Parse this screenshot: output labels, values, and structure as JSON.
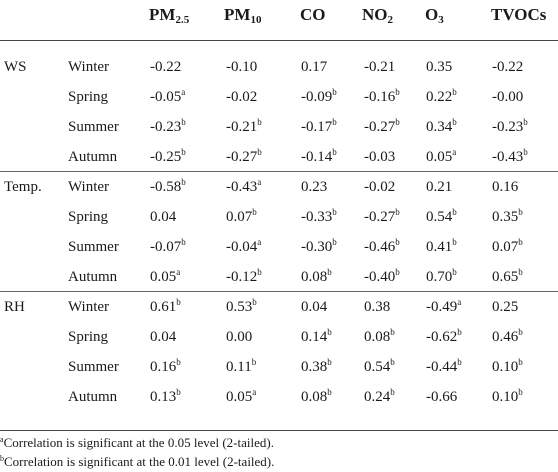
{
  "header": {
    "columns": [
      {
        "base": "PM",
        "sub": "2.5"
      },
      {
        "base": "PM",
        "sub": "10"
      },
      {
        "base": "CO",
        "sub": ""
      },
      {
        "base": "NO",
        "sub": "2"
      },
      {
        "base": "O",
        "sub": "3"
      },
      {
        "base": "TVOCs",
        "sub": ""
      }
    ]
  },
  "groups": [
    {
      "label": "WS",
      "rows": [
        {
          "season": "Winter",
          "cells": [
            {
              "v": "-0.22",
              "m": ""
            },
            {
              "v": "-0.10",
              "m": ""
            },
            {
              "v": "0.17",
              "m": ""
            },
            {
              "v": "-0.21",
              "m": ""
            },
            {
              "v": "0.35",
              "m": ""
            },
            {
              "v": "-0.22",
              "m": ""
            }
          ]
        },
        {
          "season": "Spring",
          "cells": [
            {
              "v": "-0.05",
              "m": "a"
            },
            {
              "v": "-0.02",
              "m": ""
            },
            {
              "v": "-0.09",
              "m": "b"
            },
            {
              "v": "-0.16",
              "m": "b"
            },
            {
              "v": "0.22",
              "m": "b"
            },
            {
              "v": "-0.00",
              "m": ""
            }
          ]
        },
        {
          "season": "Summer",
          "cells": [
            {
              "v": "-0.23",
              "m": "b"
            },
            {
              "v": "-0.21",
              "m": "b"
            },
            {
              "v": "-0.17",
              "m": "b"
            },
            {
              "v": "-0.27",
              "m": "b"
            },
            {
              "v": "0.34",
              "m": "b"
            },
            {
              "v": "-0.23",
              "m": "b"
            }
          ]
        },
        {
          "season": "Autumn",
          "cells": [
            {
              "v": "-0.25",
              "m": "b"
            },
            {
              "v": "-0.27",
              "m": "b"
            },
            {
              "v": "-0.14",
              "m": "b"
            },
            {
              "v": "-0.03",
              "m": ""
            },
            {
              "v": "0.05",
              "m": "a"
            },
            {
              "v": "-0.43",
              "m": "b"
            }
          ]
        }
      ]
    },
    {
      "label": "Temp.",
      "rows": [
        {
          "season": "Winter",
          "cells": [
            {
              "v": "-0.58",
              "m": "b"
            },
            {
              "v": "-0.43",
              "m": "a"
            },
            {
              "v": "0.23",
              "m": ""
            },
            {
              "v": "-0.02",
              "m": ""
            },
            {
              "v": "0.21",
              "m": ""
            },
            {
              "v": "0.16",
              "m": ""
            }
          ]
        },
        {
          "season": "Spring",
          "cells": [
            {
              "v": "0.04",
              "m": ""
            },
            {
              "v": "0.07",
              "m": "b"
            },
            {
              "v": "-0.33",
              "m": "b"
            },
            {
              "v": "-0.27",
              "m": "b"
            },
            {
              "v": "0.54",
              "m": "b"
            },
            {
              "v": "0.35",
              "m": "b"
            }
          ]
        },
        {
          "season": "Summer",
          "cells": [
            {
              "v": "-0.07",
              "m": "b"
            },
            {
              "v": "-0.04",
              "m": "a"
            },
            {
              "v": "-0.30",
              "m": "b"
            },
            {
              "v": "-0.46",
              "m": "b"
            },
            {
              "v": "0.41",
              "m": "b"
            },
            {
              "v": "0.07",
              "m": "b"
            }
          ]
        },
        {
          "season": "Autumn",
          "cells": [
            {
              "v": "0.05",
              "m": "a"
            },
            {
              "v": "-0.12",
              "m": "b"
            },
            {
              "v": "0.08",
              "m": "b"
            },
            {
              "v": "-0.40",
              "m": "b"
            },
            {
              "v": "0.70",
              "m": "b"
            },
            {
              "v": "0.65",
              "m": "b"
            }
          ]
        }
      ]
    },
    {
      "label": "RH",
      "rows": [
        {
          "season": "Winter",
          "cells": [
            {
              "v": "0.61",
              "m": "b"
            },
            {
              "v": "0.53",
              "m": "b"
            },
            {
              "v": "0.04",
              "m": ""
            },
            {
              "v": "0.38",
              "m": ""
            },
            {
              "v": "-0.49",
              "m": "a"
            },
            {
              "v": "0.25",
              "m": ""
            }
          ]
        },
        {
          "season": "Spring",
          "cells": [
            {
              "v": "0.04",
              "m": ""
            },
            {
              "v": "0.00",
              "m": ""
            },
            {
              "v": "0.14",
              "m": "b"
            },
            {
              "v": "0.08",
              "m": "b"
            },
            {
              "v": "-0.62",
              "m": "b"
            },
            {
              "v": "0.46",
              "m": "b"
            }
          ]
        },
        {
          "season": "Summer",
          "cells": [
            {
              "v": "0.16",
              "m": "b"
            },
            {
              "v": "0.11",
              "m": "b"
            },
            {
              "v": "0.38",
              "m": "b"
            },
            {
              "v": "0.54",
              "m": "b"
            },
            {
              "v": "-0.44",
              "m": "b"
            },
            {
              "v": "0.10",
              "m": "b"
            }
          ]
        },
        {
          "season": "Autumn",
          "cells": [
            {
              "v": "0.13",
              "m": "b"
            },
            {
              "v": "0.05",
              "m": "a"
            },
            {
              "v": "0.08",
              "m": "b"
            },
            {
              "v": "0.24",
              "m": "b"
            },
            {
              "v": "-0.66",
              "m": ""
            },
            {
              "v": "0.10",
              "m": "b"
            }
          ]
        }
      ]
    }
  ],
  "footnotes": [
    {
      "mark": "a",
      "text": "Correlation is significant at the 0.05 level (2-tailed)."
    },
    {
      "mark": "b",
      "text": "Correlation is significant at the 0.01 level (2-tailed)."
    }
  ]
}
